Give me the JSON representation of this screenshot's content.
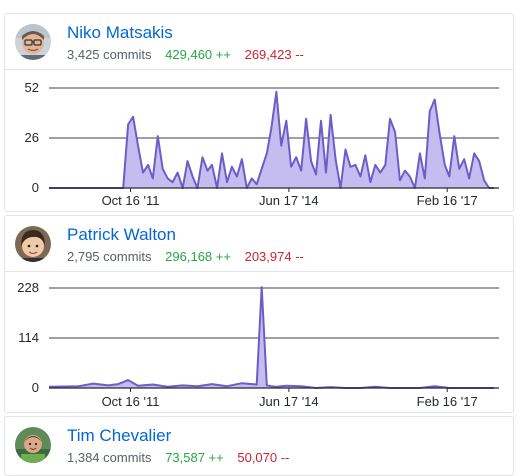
{
  "contributors": [
    {
      "name": "Niko Matsakis",
      "commits": "3,425 commits",
      "additions": "429,460 ++",
      "deletions": "269,423 --",
      "avatar_icon": "user-avatar-glasses"
    },
    {
      "name": "Patrick Walton",
      "commits": "2,795 commits",
      "additions": "296,168 ++",
      "deletions": "203,974 --",
      "avatar_icon": "user-avatar-dark-hair"
    },
    {
      "name": "Tim Chevalier",
      "commits": "1,384 commits",
      "additions": "73,587 ++",
      "deletions": "50,070 --",
      "avatar_icon": "user-avatar-green"
    }
  ],
  "colors": {
    "link": "#0366d6",
    "additions": "#28a745",
    "deletions": "#cb2431",
    "area_fill": "#c5bdf0",
    "area_stroke": "#6f5cc6",
    "axis": "#24292e",
    "gridline": "#1b1f23"
  },
  "chart_data": [
    {
      "type": "area",
      "series": [
        {
          "x": [
            "2010-06",
            "2010-12",
            "2011-06",
            "2011-09",
            "2011-10",
            "2011-11",
            "2011-12",
            "2012-01",
            "2012-02",
            "2012-03",
            "2012-04",
            "2012-05",
            "2012-06",
            "2012-07",
            "2012-08",
            "2012-09",
            "2012-10",
            "2012-11",
            "2012-12",
            "2013-01",
            "2013-02",
            "2013-03",
            "2013-04",
            "2013-05",
            "2013-06",
            "2013-07",
            "2013-08",
            "2013-09",
            "2013-10",
            "2013-11",
            "2013-12",
            "2014-01",
            "2014-02",
            "2014-03",
            "2014-04",
            "2014-05",
            "2014-06",
            "2014-07",
            "2014-08",
            "2014-09",
            "2014-10",
            "2014-11",
            "2014-12",
            "2015-01",
            "2015-02",
            "2015-03",
            "2015-04",
            "2015-05",
            "2015-06",
            "2015-07",
            "2015-08",
            "2015-09",
            "2015-10",
            "2015-11",
            "2015-12",
            "2016-01",
            "2016-02",
            "2016-03",
            "2016-04",
            "2016-05",
            "2016-06",
            "2016-07",
            "2016-08",
            "2016-09",
            "2016-10",
            "2016-11",
            "2016-12",
            "2017-01",
            "2017-02",
            "2017-03",
            "2017-04",
            "2017-05",
            "2017-06",
            "2017-07",
            "2017-08",
            "2017-09",
            "2017-10",
            "2017-11",
            "2017-12"
          ],
          "values": [
            0,
            0,
            0,
            0,
            33,
            37,
            22,
            8,
            12,
            5,
            27,
            10,
            5,
            3,
            8,
            0,
            14,
            6,
            0,
            16,
            9,
            12,
            0,
            18,
            3,
            11,
            6,
            15,
            0,
            5,
            2,
            10,
            18,
            31,
            50,
            22,
            35,
            11,
            16,
            9,
            36,
            14,
            7,
            35,
            8,
            38,
            15,
            0,
            20,
            11,
            12,
            6,
            17,
            3,
            12,
            8,
            12,
            36,
            29,
            4,
            9,
            6,
            0,
            18,
            5,
            40,
            46,
            28,
            12,
            6,
            27,
            10,
            15,
            5,
            18,
            14,
            4,
            0,
            0
          ]
        }
      ],
      "ylim": [
        0,
        52
      ],
      "yticks": [
        "0",
        "26",
        "52"
      ],
      "xticks": [
        "Oct 16 '11",
        "Jun 17 '14",
        "Feb 16 '17"
      ],
      "grid": true
    },
    {
      "type": "area",
      "series": [
        {
          "x": [
            "2010-06",
            "2010-12",
            "2011-03",
            "2011-06",
            "2011-08",
            "2011-10",
            "2011-12",
            "2012-03",
            "2012-06",
            "2012-09",
            "2012-12",
            "2013-03",
            "2013-06",
            "2013-09",
            "2013-12",
            "2014-01",
            "2014-02",
            "2014-03",
            "2014-04",
            "2014-06",
            "2014-09",
            "2014-12",
            "2015-03",
            "2015-06",
            "2015-09",
            "2015-12",
            "2016-03",
            "2016-06",
            "2016-09",
            "2016-12",
            "2017-03",
            "2017-06",
            "2017-09",
            "2017-12"
          ],
          "values": [
            3,
            4,
            10,
            6,
            9,
            18,
            5,
            8,
            3,
            6,
            4,
            9,
            4,
            11,
            8,
            230,
            6,
            4,
            3,
            5,
            4,
            0,
            2,
            0,
            0,
            3,
            0,
            0,
            0,
            4,
            0,
            0,
            0,
            0
          ]
        }
      ],
      "ylim": [
        0,
        228
      ],
      "yticks": [
        "0",
        "114",
        "228"
      ],
      "xticks": [
        "Oct 16 '11",
        "Jun 17 '14",
        "Feb 16 '17"
      ],
      "grid": true
    }
  ]
}
